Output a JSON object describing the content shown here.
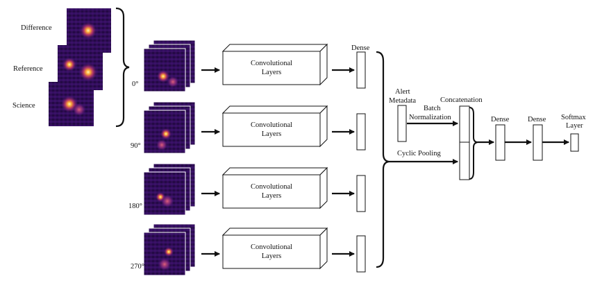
{
  "inputs": {
    "difference": "Difference",
    "reference": "Reference",
    "science": "Science"
  },
  "rotations": [
    "0°",
    "90°",
    "180°",
    "270°"
  ],
  "conv_label_line1": "Convolutional",
  "conv_label_line2": "Layers",
  "dense_label": "Dense",
  "alert_metadata_line1": "Alert",
  "alert_metadata_line2": "Metadata",
  "batch_norm_line1": "Batch",
  "batch_norm_line2": "Normalization",
  "concatenation_label": "Concatenation",
  "cyclic_pooling_label": "Cyclic Pooling",
  "dense_1_label": "Dense",
  "dense_2_label": "Dense",
  "softmax_line1": "Softmax",
  "softmax_line2": "Layer",
  "colors": {
    "stamp_background": "#2a0a4e",
    "stamp_bright": "#fcd25a",
    "stroke": "#111111"
  }
}
